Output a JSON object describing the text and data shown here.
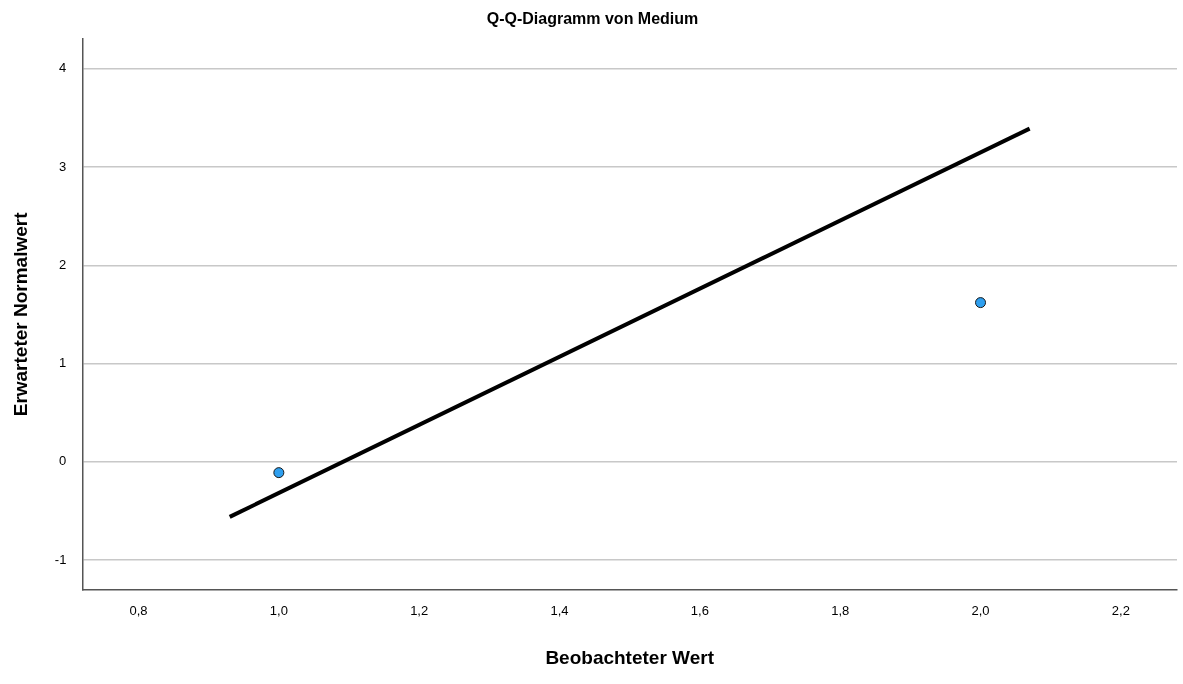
{
  "chart_data": {
    "type": "scatter",
    "title": "Q-Q-Diagramm von Medium",
    "xlabel": "Beobachteter Wert",
    "ylabel": "Erwarteter Normalwert",
    "xlim": [
      0.72,
      2.28
    ],
    "ylim": [
      -1.3,
      4.3
    ],
    "xticks": [
      {
        "value": 0.8,
        "label": "0,8"
      },
      {
        "value": 1.0,
        "label": "1,0"
      },
      {
        "value": 1.2,
        "label": "1,2"
      },
      {
        "value": 1.4,
        "label": "1,4"
      },
      {
        "value": 1.6,
        "label": "1,6"
      },
      {
        "value": 1.8,
        "label": "1,8"
      },
      {
        "value": 2.0,
        "label": "2,0"
      },
      {
        "value": 2.2,
        "label": "2,2"
      }
    ],
    "yticks": [
      -1,
      0,
      1,
      2,
      3,
      4
    ],
    "grid": "y",
    "legend": false,
    "marker": "circle",
    "series": [
      {
        "type": "scatter",
        "color": "#2e9fef",
        "x": [
          1.0,
          2.0
        ],
        "values": [
          -0.11,
          1.62
        ]
      },
      {
        "type": "line",
        "color": "#000000",
        "x": [
          0.93,
          2.07
        ],
        "values": [
          -0.56,
          3.39
        ],
        "marker": "none",
        "line_style": "solid"
      }
    ]
  }
}
